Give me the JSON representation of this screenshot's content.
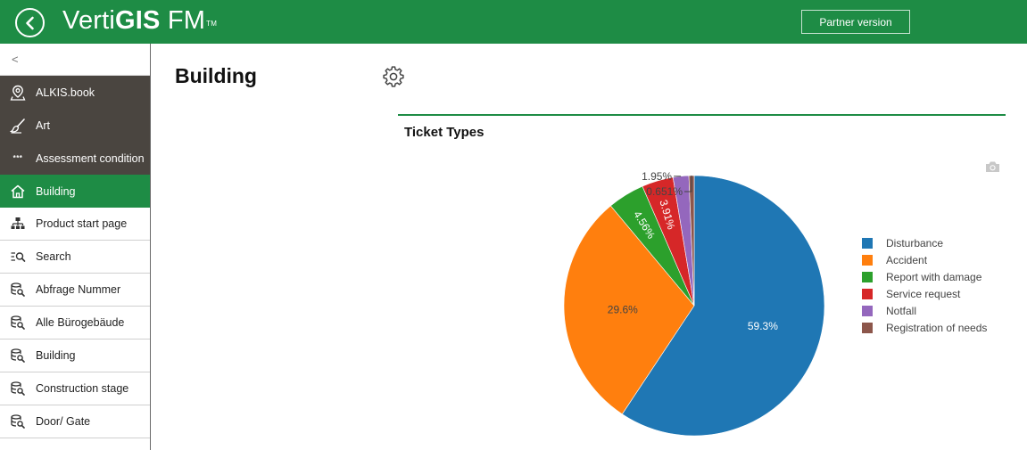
{
  "topbar": {
    "logo_light": "Verti",
    "logo_bold": "GIS",
    "logo_suffix": " FM",
    "logo_tm": "TM",
    "partner_button": "Partner version"
  },
  "sidebar": {
    "collapse_glyph": "<",
    "items": [
      {
        "label": "ALKIS.book",
        "icon": "map-pin-icon",
        "style": "dark"
      },
      {
        "label": "Art",
        "icon": "brush-icon",
        "style": "dark"
      },
      {
        "label": "Assessment condition",
        "icon": "stars-icon",
        "icon_text": "***",
        "style": "dark"
      },
      {
        "label": "Building",
        "icon": "home-icon",
        "style": "active"
      },
      {
        "label": "Product start page",
        "icon": "sitemap-icon",
        "style": "light"
      },
      {
        "label": "Search",
        "icon": "search-list-icon",
        "style": "light"
      },
      {
        "label": "Abfrage Nummer",
        "icon": "database-search-icon",
        "style": "light"
      },
      {
        "label": "Alle Bürogebäude",
        "icon": "database-search-icon",
        "style": "light"
      },
      {
        "label": "Building",
        "icon": "database-search-icon",
        "style": "light"
      },
      {
        "label": "Construction stage",
        "icon": "database-search-icon",
        "style": "light"
      },
      {
        "label": "Door/ Gate",
        "icon": "database-search-icon",
        "style": "light"
      }
    ]
  },
  "main": {
    "title": "Building",
    "settings_icon": "gear-icon",
    "panel_title": "Ticket Types",
    "camera_icon": "camera-icon"
  },
  "chart_data": {
    "type": "pie",
    "title": "Ticket Types",
    "labels": [
      "Disturbance",
      "Accident",
      "Report with damage",
      "Service request",
      "Notfall",
      "Registration of needs"
    ],
    "values": [
      59.3,
      29.6,
      4.56,
      3.91,
      1.95,
      0.651
    ],
    "value_labels": [
      "59.3%",
      "29.6%",
      "4.56%",
      "3.91%",
      "1.95%",
      "0.651%"
    ],
    "colors": [
      "#1f77b4",
      "#ff7f0e",
      "#2ca02c",
      "#d62728",
      "#9467bd",
      "#8c564b"
    ],
    "label_colors": [
      "#ffffff",
      "#444444",
      "#ffffff",
      "#ffffff",
      "#444444",
      "#444444"
    ],
    "legend_position": "right",
    "direction": "clockwise",
    "start": "top"
  }
}
